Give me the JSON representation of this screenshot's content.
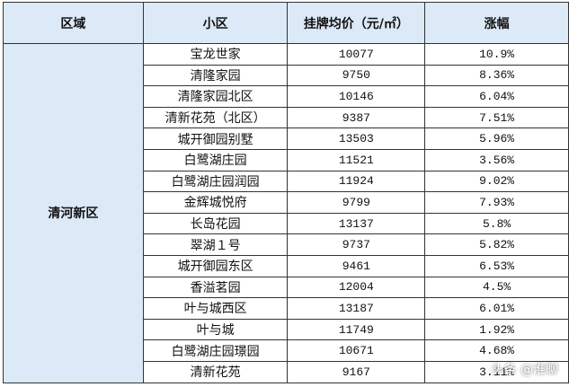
{
  "table": {
    "header": [
      "区域",
      "小区",
      "挂牌均价（元/㎡）",
      "涨幅"
    ],
    "region": "清河新区",
    "rows": [
      [
        "宝龙世家",
        "10077",
        "10.9%"
      ],
      [
        "清隆家园",
        "9750",
        "8.36%"
      ],
      [
        "清隆家园北区",
        "10146",
        "6.04%"
      ],
      [
        "清新花苑（北区）",
        "9387",
        "7.51%"
      ],
      [
        "城开御园别墅",
        "13503",
        "5.96%"
      ],
      [
        "白鹭湖庄园",
        "11521",
        "3.56%"
      ],
      [
        "白鹭湖庄园润园",
        "11924",
        "9.02%"
      ],
      [
        "金辉城悦府",
        "9799",
        "7.93%"
      ],
      [
        "长岛花园",
        "13137",
        "5.8%"
      ],
      [
        "翠湖１号",
        "9737",
        "5.82%"
      ],
      [
        "城开御园东区",
        "9461",
        "6.53%"
      ],
      [
        "香溢茗园",
        "12004",
        "4.5%"
      ],
      [
        "叶与城西区",
        "13187",
        "6.01%"
      ],
      [
        "叶与城",
        "11749",
        "1.92%"
      ],
      [
        "白鹭湖庄园璟园",
        "10671",
        "4.68%"
      ],
      [
        "清新花苑",
        "9167",
        "3.11%"
      ]
    ]
  },
  "watermark": "头条 @淮聊"
}
